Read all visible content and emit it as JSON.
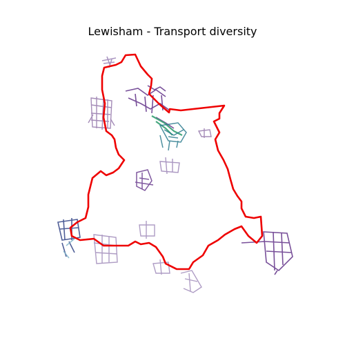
{
  "title": "Lewisham - Transport diversity",
  "colors": {
    "boundary": "#ee0000",
    "clusters": [
      "#8e6fa6",
      "#6a3d8f",
      "#4b2f7f",
      "#3d4d8c",
      "#2d7c8f",
      "#3fa47a",
      "#7fb3c8"
    ]
  }
}
